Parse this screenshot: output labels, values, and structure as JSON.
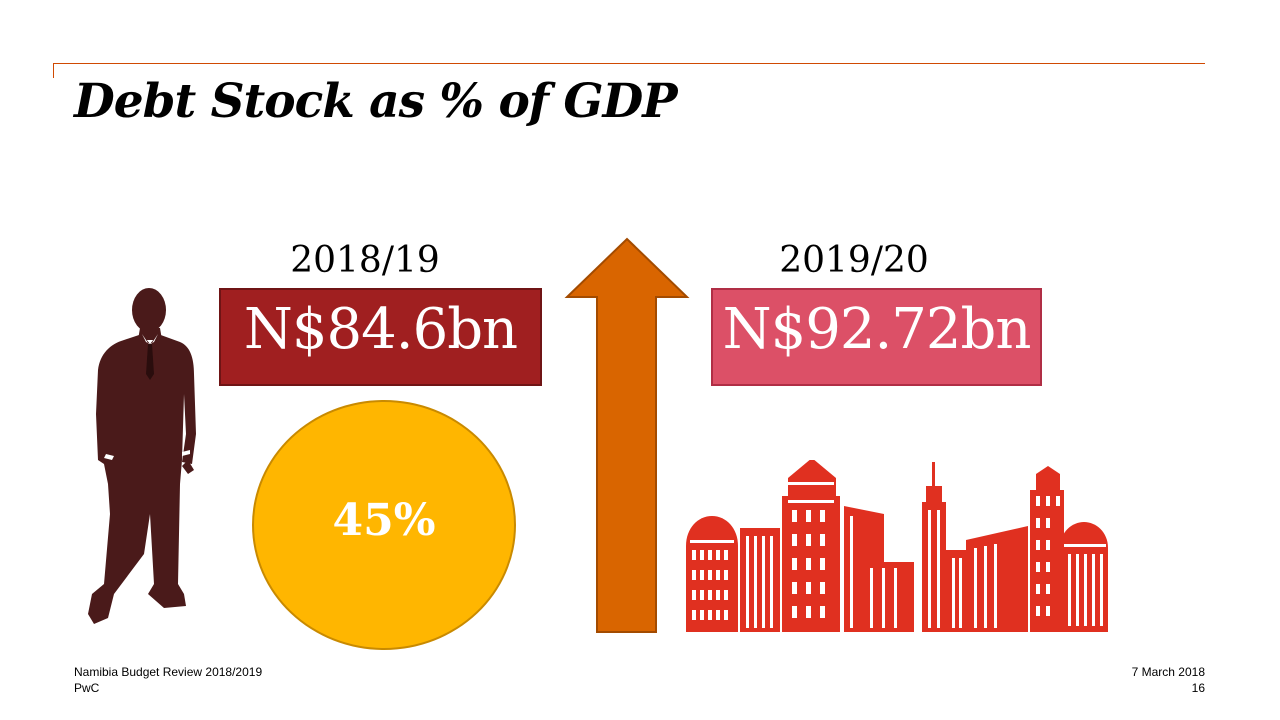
{
  "slide": {
    "title": "Debt Stock as % of GDP",
    "left": {
      "year": "2018/19",
      "amount": "N$84.6bn",
      "percent": "45%"
    },
    "right": {
      "year": "2019/20",
      "amount": "N$92.72bn"
    }
  },
  "icons": {
    "person": "businessman-silhouette-icon",
    "arrow": "up-arrow-icon",
    "city": "city-skyline-icon"
  },
  "colors": {
    "accent_line": "#d04a02",
    "amount_left": "#a01f20",
    "amount_right": "#dc5067",
    "circle": "#ffb600",
    "arrow": "#d96500",
    "skyline": "#e03020",
    "person": "#4a1a1a"
  },
  "footer": {
    "doc_title": "Namibia Budget Review 2018/2019",
    "company": "PwC",
    "date": "7 March 2018",
    "page_number": "16"
  }
}
